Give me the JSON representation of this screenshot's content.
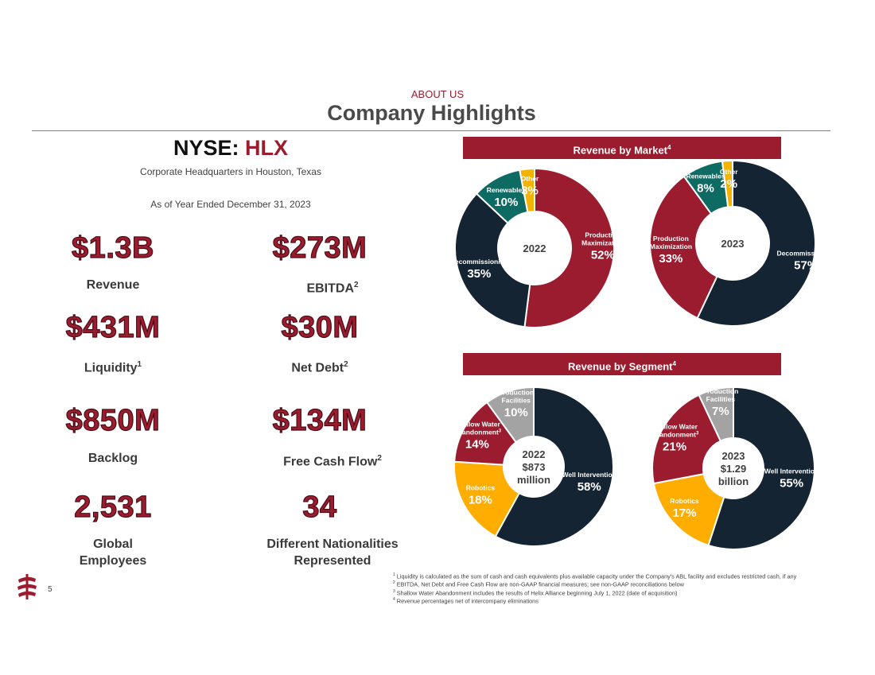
{
  "header": {
    "section_label": "ABOUT US",
    "title": "Company Highlights"
  },
  "company": {
    "ticker_prefix": "NYSE: ",
    "ticker_symbol": "HLX",
    "hq": "Corporate Headquarters in Houston, Texas",
    "as_of": "As of Year Ended December 31, 2023"
  },
  "metrics": {
    "revenue": {
      "value": "$1.3B",
      "label": "Revenue"
    },
    "ebitda": {
      "value": "$273M",
      "label": "EBITDA",
      "note": "2"
    },
    "liquidity": {
      "value": "$431M",
      "label": "Liquidity",
      "note": "1"
    },
    "net_debt": {
      "value": "$30M",
      "label": "Net Debt",
      "note": "2"
    },
    "backlog": {
      "value": "$850M",
      "label": "Backlog"
    },
    "fcf": {
      "value": "$134M",
      "label": "Free Cash Flow",
      "note": "2"
    },
    "employees": {
      "value": "2,531",
      "label_line1": "Global",
      "label_line2": "Employees"
    },
    "nationalities": {
      "value": "34",
      "label_line1": "Different Nationalities",
      "label_line2": "Represented"
    }
  },
  "banners": {
    "market": {
      "text": "Revenue by Market",
      "note": "4"
    },
    "segment": {
      "text": "Revenue by Segment",
      "note": "4"
    }
  },
  "colors": {
    "accent": "#9b1c2e",
    "navy": "#152432",
    "teal": "#0e6b63",
    "gold": "#f5b301",
    "orange": "#ffad00",
    "gray": "#a3a3a3"
  },
  "chart_data": [
    {
      "type": "pie",
      "title": "Revenue by Market",
      "center_label": [
        "2022"
      ],
      "slices": [
        {
          "label": "Production Maximization",
          "value": 52,
          "display": "52%",
          "color": "#9b1c2e"
        },
        {
          "label": "Decommissioning",
          "value": 35,
          "display": "35%",
          "color": "#152432"
        },
        {
          "label": "Renewables",
          "value": 10,
          "display": "10%",
          "color": "#0e6b63"
        },
        {
          "label": "Other",
          "value": 3,
          "display": "3%",
          "color": "#f5b301"
        }
      ]
    },
    {
      "type": "pie",
      "title": "Revenue by Market",
      "center_label": [
        "2023"
      ],
      "slices": [
        {
          "label": "Decommissioning",
          "value": 57,
          "display": "57%",
          "color": "#152432"
        },
        {
          "label": "Production Maximization",
          "value": 33,
          "display": "33%",
          "color": "#9b1c2e"
        },
        {
          "label": "Renewables",
          "value": 8,
          "display": "8%",
          "color": "#0e6b63"
        },
        {
          "label": "Other",
          "value": 2,
          "display": "2%",
          "color": "#f5b301"
        }
      ]
    },
    {
      "type": "pie",
      "title": "Revenue by Segment",
      "center_label": [
        "2022",
        "$873",
        "million"
      ],
      "slices": [
        {
          "label": "Well Intervention",
          "value": 58,
          "display": "58%",
          "color": "#152432"
        },
        {
          "label": "Robotics",
          "value": 18,
          "display": "18%",
          "color": "#ffad00"
        },
        {
          "label": "Shallow Water Abandonment",
          "note": "3",
          "value": 14,
          "display": "14%",
          "color": "#9b1c2e"
        },
        {
          "label": "Production Facilities",
          "value": 10,
          "display": "10%",
          "color": "#a3a3a3"
        }
      ]
    },
    {
      "type": "pie",
      "title": "Revenue by Segment",
      "center_label": [
        "2023",
        "$1.29",
        "billion"
      ],
      "slices": [
        {
          "label": "Well Intervention",
          "value": 55,
          "display": "55%",
          "color": "#152432"
        },
        {
          "label": "Robotics",
          "value": 17,
          "display": "17%",
          "color": "#ffad00"
        },
        {
          "label": "Shallow Water Abandonment",
          "note": "3",
          "value": 21,
          "display": "21%",
          "color": "#9b1c2e"
        },
        {
          "label": "Production Facilities",
          "value": 7,
          "display": "7%",
          "color": "#a3a3a3"
        }
      ]
    }
  ],
  "footnotes": [
    {
      "num": "1",
      "text": "Liquidity is calculated as the sum of cash and cash equivalents plus available capacity under the Company's ABL facility and excludes restricted cash, if any"
    },
    {
      "num": "2",
      "text": "EBITDA, Net Debt and Free Cash Flow are non-GAAP financial measures; see non-GAAP reconciliations below"
    },
    {
      "num": "3",
      "text": "Shallow Water Abandonment includes the results of Helix Alliance beginning July 1, 2022 (date of acquisition)"
    },
    {
      "num": "4",
      "text": "Revenue percentages net of intercompany eliminations"
    }
  ],
  "page_number": "5"
}
